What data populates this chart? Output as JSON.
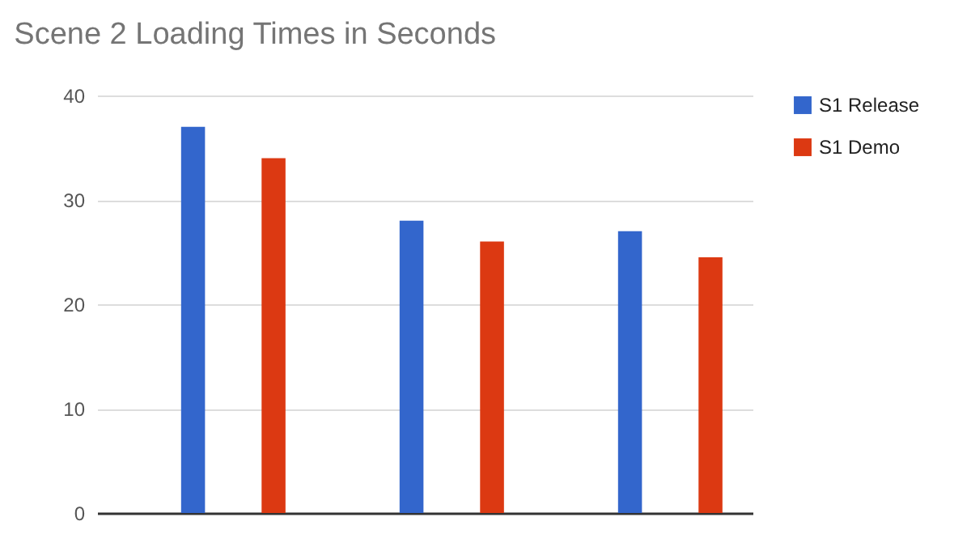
{
  "chart_data": {
    "type": "bar",
    "title": "Scene 2 Loading Times in Seconds",
    "categories": [
      null,
      null,
      null
    ],
    "series": [
      {
        "name": "S1 Release",
        "color": "#3366cc",
        "values": [
          37,
          28,
          27
        ]
      },
      {
        "name": "S1 Demo",
        "color": "#dc3912",
        "values": [
          34,
          26,
          24.5
        ]
      }
    ],
    "ylim": [
      0,
      40
    ],
    "yticks": [
      0,
      10,
      20,
      30,
      40
    ],
    "grid": "y",
    "legend": "top right"
  }
}
